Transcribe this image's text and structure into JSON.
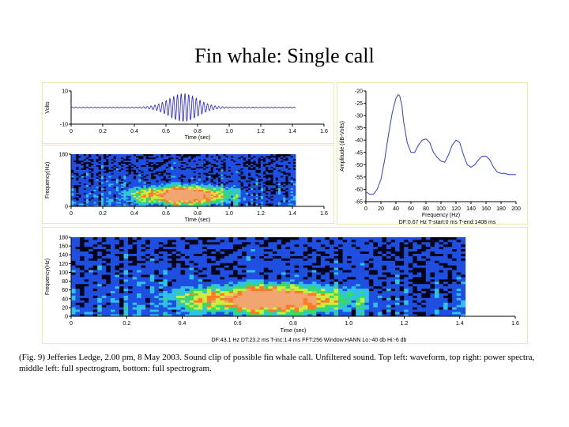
{
  "slide": {
    "title": "Fin whale: Single call",
    "caption": "(Fig. 9) Jefferies Ledge, 2.00 pm, 8 May 2003. Sound clip of possible fin whale call. Unfiltered sound. Top left: waveform, top right: power spectra, middle left: full spectrogram, bottom: full spectrogram."
  },
  "colors": {
    "waveform_line": "#1f1fd6",
    "spectrum_line": "#2b3fd1",
    "spec_background": "#05051a",
    "spec_low": "#1f4fe0",
    "spec_midlow": "#2fc2e8",
    "spec_mid": "#39d86a",
    "spec_midhigh": "#c9ef3a",
    "spec_high": "#ff7a2a",
    "spec_peak": "#f1a571",
    "panel_border": "#f1e7a6"
  },
  "chart_data": [
    {
      "id": "waveform",
      "type": "line",
      "xlabel": "Time (sec)",
      "ylabel": "Volts",
      "xlim": [
        0,
        1.6
      ],
      "ylim": [
        -10,
        10
      ],
      "xticks": [
        "0",
        "0.2",
        "0.4",
        "0.6",
        "0.8",
        "1.0",
        "1.2",
        "1.4",
        "1.6"
      ],
      "yticks": [
        "10",
        "-10"
      ],
      "signal": {
        "duration": 1.42,
        "center": 0.71,
        "peak_amplitude": 8,
        "baseline_amplitude": 0.3
      }
    },
    {
      "id": "spectrogram_middle",
      "type": "heatmap",
      "xlabel": "Time (sec)",
      "ylabel": "Frequency(Hz)",
      "xlim": [
        0,
        1.6
      ],
      "ylim": [
        0,
        180
      ],
      "xticks": [
        "0",
        "0.2",
        "0.4",
        "0.6",
        "0.8",
        "1.0",
        "1.2",
        "1.4",
        "1.6"
      ],
      "yticks": [
        "180",
        "0"
      ],
      "data_extent": [
        0,
        1.42
      ],
      "call": {
        "center_time": 0.71,
        "center_freq": 40,
        "half_duration": 0.42,
        "half_bandwidth": 45
      }
    },
    {
      "id": "power_spectrum",
      "type": "line",
      "xlabel": "Frequency (Hz)",
      "ylabel": "Amplitude (dB-Volts)",
      "xlim": [
        0,
        200
      ],
      "ylim": [
        -65,
        -20
      ],
      "xticks": [
        "0",
        "20",
        "40",
        "60",
        "80",
        "100",
        "120",
        "140",
        "160",
        "180",
        "200"
      ],
      "yticks": [
        "-20",
        "-25",
        "-30",
        "-35",
        "-40",
        "-45",
        "-50",
        "-55",
        "-60",
        "-65"
      ],
      "x": [
        0,
        5,
        10,
        15,
        20,
        25,
        30,
        35,
        40,
        43,
        45,
        48,
        50,
        55,
        60,
        65,
        70,
        75,
        80,
        85,
        90,
        95,
        100,
        105,
        110,
        115,
        120,
        125,
        130,
        135,
        140,
        145,
        150,
        155,
        160,
        165,
        170,
        175,
        180,
        185,
        190,
        195,
        200
      ],
      "y": [
        -61,
        -62,
        -62,
        -60,
        -56,
        -48,
        -38,
        -29,
        -23,
        -21.5,
        -22,
        -26,
        -32,
        -41,
        -45,
        -45,
        -42,
        -40,
        -39.5,
        -41,
        -45,
        -47,
        -48.5,
        -49,
        -46,
        -42,
        -40,
        -41,
        -46,
        -50,
        -51,
        -50,
        -48,
        -46.5,
        -46.5,
        -48,
        -51,
        -53,
        -53.5,
        -53.5,
        -54,
        -54,
        -54
      ],
      "annotations": [
        "DF:0.67 Hz",
        "T-start:0 ms",
        "T-end:1408 ms"
      ]
    },
    {
      "id": "spectrogram_bottom",
      "type": "heatmap",
      "xlabel": "Time (sec)",
      "ylabel": "Frequency(Hz)",
      "xlim": [
        0,
        1.6
      ],
      "ylim": [
        0,
        180
      ],
      "xticks": [
        "0",
        "0.2",
        "0.4",
        "0.6",
        "0.8",
        "1.0",
        "1.2",
        "1.4",
        "1.6"
      ],
      "yticks": [
        "180",
        "160",
        "140",
        "120",
        "100",
        "80",
        "60",
        "40",
        "20",
        "0"
      ],
      "data_extent": [
        0,
        1.42
      ],
      "call": {
        "center_time": 0.71,
        "center_freq": 40,
        "half_duration": 0.42,
        "half_bandwidth": 45
      },
      "annotations": [
        "DF:43.1 Hz",
        "DT:23.2 ms",
        "T-inc:1.4 ms",
        "FFT:256",
        "Window:HANN",
        "Lo:-40 db",
        "Hi:-6 db"
      ]
    }
  ]
}
